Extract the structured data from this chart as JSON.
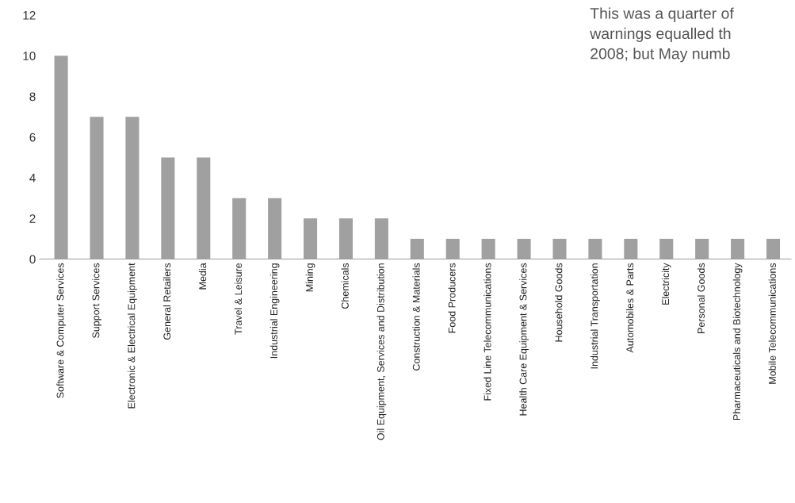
{
  "chart_data": {
    "type": "bar",
    "categories": [
      "Software & Computer Services",
      "Support Services",
      "Electronic & Electrical Equipment",
      "General Retailers",
      "Media",
      "Travel & Leisure",
      "Industrial Engineering",
      "Mining",
      "Chemicals",
      "Oil Equipment, Services and Distribution",
      "Construction & Materials",
      "Food Producers",
      "Fixed Line Telecommunications",
      "Health Care Equipment & Services",
      "Household Goods",
      "Industrial Transportation",
      "Automobiles & Parts",
      "Electricity",
      "Personal Goods",
      "Pharmaceuticals and Biotechnology",
      "Mobile Telecommunications"
    ],
    "values": [
      10,
      7,
      7,
      5,
      5,
      3,
      3,
      2,
      2,
      2,
      1,
      1,
      1,
      1,
      1,
      1,
      1,
      1,
      1,
      1,
      1
    ],
    "color": "#a0a0a0",
    "ylim": [
      0,
      12
    ],
    "yticks": [
      0,
      2,
      4,
      6,
      8,
      10,
      12
    ],
    "grid": false,
    "legend": false,
    "annotations": [
      "This was a quarter of",
      "warnings equalled th",
      "2008; but May numb"
    ]
  }
}
